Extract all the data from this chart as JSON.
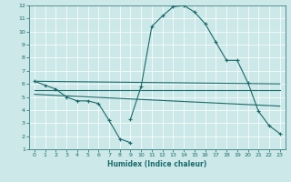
{
  "xlabel": "Humidex (Indice chaleur)",
  "xlim": [
    -0.5,
    23.5
  ],
  "ylim": [
    1,
    12
  ],
  "yticks": [
    1,
    2,
    3,
    4,
    5,
    6,
    7,
    8,
    9,
    10,
    11,
    12
  ],
  "xticks": [
    0,
    1,
    2,
    3,
    4,
    5,
    6,
    7,
    8,
    9,
    10,
    11,
    12,
    13,
    14,
    15,
    16,
    17,
    18,
    19,
    20,
    21,
    22,
    23
  ],
  "bg_color": "#cce8e8",
  "line_color": "#1a6b6b",
  "grid_color": "#ffffff",
  "line1": {
    "x": [
      0,
      1,
      2,
      3,
      4,
      5,
      6,
      7,
      8,
      9
    ],
    "y": [
      6.2,
      5.9,
      5.6,
      5.0,
      4.7,
      4.7,
      4.5,
      3.2,
      1.8,
      1.5
    ]
  },
  "line2": {
    "x": [
      9,
      10,
      11,
      12,
      13,
      14,
      15,
      16,
      17,
      18,
      19,
      20,
      21,
      22,
      23
    ],
    "y": [
      3.3,
      5.8,
      10.4,
      11.2,
      11.9,
      12.0,
      11.5,
      10.6,
      9.2,
      7.8,
      7.8,
      6.1,
      3.9,
      2.8,
      2.2
    ]
  },
  "flat1": {
    "x": [
      0,
      23
    ],
    "y": [
      6.2,
      6.0
    ]
  },
  "flat2": {
    "x": [
      0,
      23
    ],
    "y": [
      5.5,
      5.5
    ]
  },
  "flat3": {
    "x": [
      0,
      23
    ],
    "y": [
      5.2,
      4.3
    ]
  }
}
